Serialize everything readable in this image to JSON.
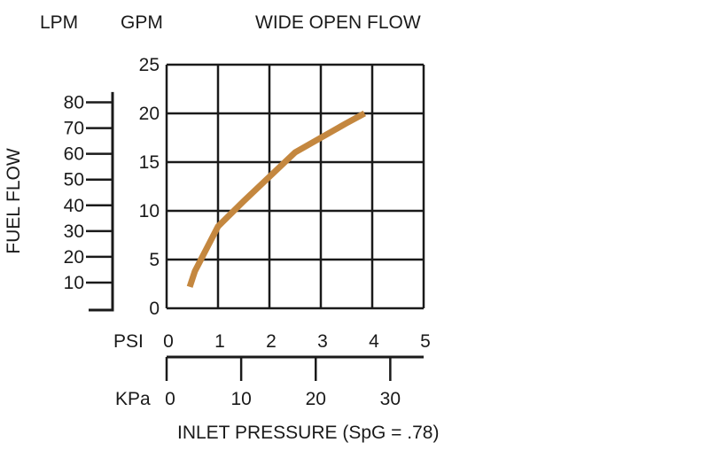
{
  "chart_data": {
    "type": "line",
    "title": "WIDE OPEN FLOW",
    "left_axis_label": "FUEL FLOW",
    "unit_labels": {
      "lpm": "LPM",
      "gpm": "GPM",
      "psi": "PSI",
      "kpa": "KPa"
    },
    "xlabel": "INLET PRESSURE (SpG = .78)",
    "x_psi_range": [
      0,
      5
    ],
    "x_psi_ticks": [
      "0",
      "1",
      "2",
      "3",
      "4",
      "5"
    ],
    "y_gpm_range": [
      0,
      25
    ],
    "y_gpm_ticks": [
      "0",
      "5",
      "10",
      "15",
      "20",
      "25"
    ],
    "kpa_ticks": [
      {
        "label": "0",
        "value": 0
      },
      {
        "label": "10",
        "value": 10
      },
      {
        "label": "20",
        "value": 20
      },
      {
        "label": "30",
        "value": 30
      }
    ],
    "lpm_ticks": [
      {
        "label": "10",
        "value": 10
      },
      {
        "label": "20",
        "value": 20
      },
      {
        "label": "30",
        "value": 30
      },
      {
        "label": "40",
        "value": 40
      },
      {
        "label": "50",
        "value": 50
      },
      {
        "label": "60",
        "value": 60
      },
      {
        "label": "70",
        "value": 70
      },
      {
        "label": "80",
        "value": 80
      }
    ],
    "grid": true,
    "series": [
      {
        "color": "#c4873f",
        "x": [
          0.45,
          0.55,
          1.0,
          1.5,
          2.0,
          2.5,
          3.0,
          3.5,
          3.85
        ],
        "y": [
          2.2,
          3.8,
          8.4,
          11.0,
          13.5,
          16.0,
          17.5,
          19.0,
          20.0
        ]
      }
    ]
  }
}
